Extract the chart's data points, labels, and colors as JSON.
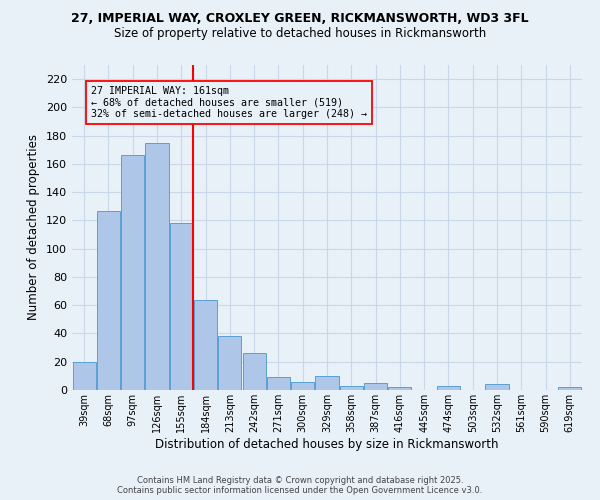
{
  "title1": "27, IMPERIAL WAY, CROXLEY GREEN, RICKMANSWORTH, WD3 3FL",
  "title2": "Size of property relative to detached houses in Rickmansworth",
  "xlabel": "Distribution of detached houses by size in Rickmansworth",
  "ylabel": "Number of detached properties",
  "categories": [
    "39sqm",
    "68sqm",
    "97sqm",
    "126sqm",
    "155sqm",
    "184sqm",
    "213sqm",
    "242sqm",
    "271sqm",
    "300sqm",
    "329sqm",
    "358sqm",
    "387sqm",
    "416sqm",
    "445sqm",
    "474sqm",
    "503sqm",
    "532sqm",
    "561sqm",
    "590sqm",
    "619sqm"
  ],
  "values": [
    20,
    127,
    166,
    175,
    118,
    64,
    38,
    26,
    9,
    6,
    10,
    3,
    5,
    2,
    0,
    3,
    0,
    4,
    0,
    0,
    2
  ],
  "bar_color": "#aec6e8",
  "bar_edge_color": "#5a9fd4",
  "grid_color": "#c8d8e8",
  "bg_color": "#e8f0f8",
  "vline_x_index": 4.48,
  "vline_color": "red",
  "annotation_text": "27 IMPERIAL WAY: 161sqm\n← 68% of detached houses are smaller (519)\n32% of semi-detached houses are larger (248) →",
  "footer1": "Contains HM Land Registry data © Crown copyright and database right 2025.",
  "footer2": "Contains public sector information licensed under the Open Government Licence v3.0.",
  "ylim": [
    0,
    230
  ],
  "yticks": [
    0,
    20,
    40,
    60,
    80,
    100,
    120,
    140,
    160,
    180,
    200,
    220
  ]
}
